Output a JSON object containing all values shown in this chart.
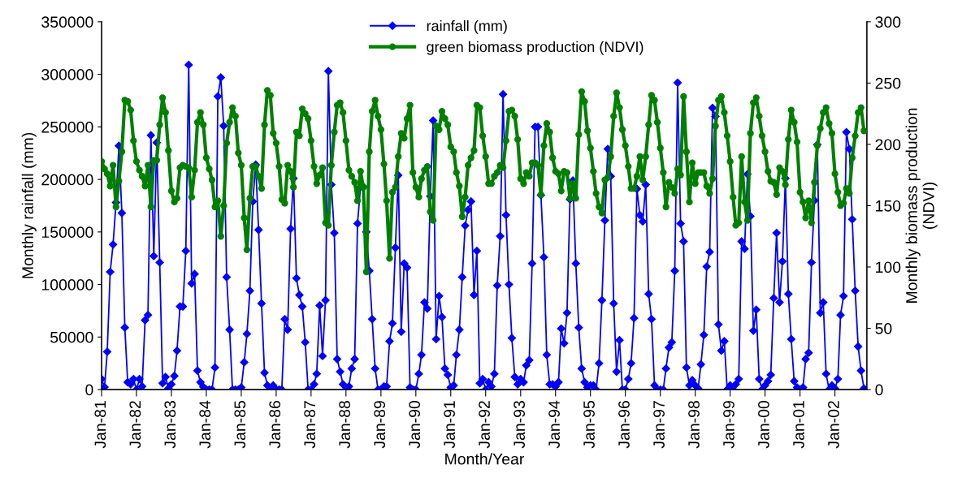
{
  "chart_data": {
    "type": "line",
    "xlabel": "Month/Year",
    "ylabel": "Monthly rainfall (mm)",
    "y2label": "Monthly biomass production\n(NDVI)",
    "x": [
      "1981-01",
      "1981-02",
      "1981-03",
      "1981-04",
      "1981-05",
      "1981-06",
      "1981-07",
      "1981-08",
      "1981-09",
      "1981-10",
      "1981-11",
      "1981-12",
      "1982-01",
      "1982-02",
      "1982-03",
      "1982-04",
      "1982-05",
      "1982-06",
      "1982-07",
      "1982-08",
      "1982-09",
      "1982-10",
      "1982-11",
      "1982-12",
      "1983-01",
      "1983-02",
      "1983-03",
      "1983-04",
      "1983-05",
      "1983-06",
      "1983-07",
      "1983-08",
      "1983-09",
      "1983-10",
      "1983-11",
      "1983-12",
      "1984-01",
      "1984-02",
      "1984-03",
      "1984-04",
      "1984-05",
      "1984-06",
      "1984-07",
      "1984-08",
      "1984-09",
      "1984-10",
      "1984-11",
      "1984-12",
      "1985-01",
      "1985-02",
      "1985-03",
      "1985-04",
      "1985-05",
      "1985-06",
      "1985-07",
      "1985-08",
      "1985-09",
      "1985-10",
      "1985-11",
      "1985-12",
      "1986-01",
      "1986-02",
      "1986-03",
      "1986-04",
      "1986-05",
      "1986-06",
      "1986-07",
      "1986-08",
      "1986-09",
      "1986-10",
      "1986-11",
      "1986-12",
      "1987-01",
      "1987-02",
      "1987-03",
      "1987-04",
      "1987-05",
      "1987-06",
      "1987-07",
      "1987-08",
      "1987-09",
      "1987-10",
      "1987-11",
      "1987-12",
      "1988-01",
      "1988-02",
      "1988-03",
      "1988-04",
      "1988-05",
      "1988-06",
      "1988-07",
      "1988-08",
      "1988-09",
      "1988-10",
      "1988-11",
      "1988-12",
      "1989-01",
      "1989-02",
      "1989-03",
      "1989-04",
      "1989-05",
      "1989-06",
      "1989-07",
      "1989-08",
      "1989-09",
      "1989-10",
      "1989-11",
      "1989-12",
      "1990-01",
      "1990-02",
      "1990-03",
      "1990-04",
      "1990-05",
      "1990-06",
      "1990-07",
      "1990-08",
      "1990-09",
      "1990-10",
      "1990-11",
      "1990-12",
      "1991-01",
      "1991-02",
      "1991-03",
      "1991-04",
      "1991-05",
      "1991-06",
      "1991-07",
      "1991-08",
      "1991-09",
      "1991-10",
      "1991-11",
      "1991-12",
      "1992-01",
      "1992-02",
      "1992-03",
      "1992-04",
      "1992-05",
      "1992-06",
      "1992-07",
      "1992-08",
      "1992-09",
      "1992-10",
      "1992-11",
      "1992-12",
      "1993-01",
      "1993-02",
      "1993-03",
      "1993-04",
      "1993-05",
      "1993-06",
      "1993-07",
      "1993-08",
      "1993-09",
      "1993-10",
      "1993-11",
      "1993-12",
      "1994-01",
      "1994-02",
      "1994-03",
      "1994-04",
      "1994-05",
      "1994-06",
      "1994-07",
      "1994-08",
      "1994-09",
      "1994-10",
      "1994-11",
      "1994-12",
      "1995-01",
      "1995-02",
      "1995-03",
      "1995-04",
      "1995-05",
      "1995-06",
      "1995-07",
      "1995-08",
      "1995-09",
      "1995-10",
      "1995-11",
      "1995-12",
      "1996-01",
      "1996-02",
      "1996-03",
      "1996-04",
      "1996-05",
      "1996-06",
      "1996-07",
      "1996-08",
      "1996-09",
      "1996-10",
      "1996-11",
      "1996-12",
      "1997-01",
      "1997-02",
      "1997-03",
      "1997-04",
      "1997-05",
      "1997-06",
      "1997-07",
      "1997-08",
      "1997-09",
      "1997-10",
      "1997-11",
      "1997-12",
      "1998-01",
      "1998-02",
      "1998-03",
      "1998-04",
      "1998-05",
      "1998-06",
      "1998-07",
      "1998-08",
      "1998-09",
      "1998-10",
      "1998-11",
      "1998-12",
      "1999-01",
      "1999-02",
      "1999-03",
      "1999-04",
      "1999-05",
      "1999-06",
      "1999-07",
      "1999-08",
      "1999-09",
      "1999-10",
      "1999-11",
      "1999-12",
      "2000-01",
      "2000-02",
      "2000-03",
      "2000-04",
      "2000-05",
      "2000-06",
      "2000-07",
      "2000-08",
      "2000-09",
      "2000-10",
      "2000-11",
      "2000-12",
      "2001-01",
      "2001-02",
      "2001-03",
      "2001-04",
      "2001-05",
      "2001-06",
      "2001-07",
      "2001-08",
      "2001-09",
      "2001-10",
      "2001-11",
      "2001-12",
      "2002-01",
      "2002-02",
      "2002-03",
      "2002-04",
      "2002-05",
      "2002-06",
      "2002-07",
      "2002-08",
      "2002-09",
      "2002-10",
      "2002-11"
    ],
    "series": [
      {
        "name": "rainfall (mm)",
        "color": "#0000ff",
        "axis": "y",
        "marker": "diamond",
        "values": [
          10000,
          2300,
          36000,
          112000,
          138000,
          178000,
          232000,
          168000,
          59000,
          7000,
          5000,
          10000,
          0,
          10000,
          3000,
          66000,
          71000,
          242000,
          127000,
          235000,
          121000,
          6000,
          12000,
          1000,
          5000,
          13000,
          37000,
          79000,
          79000,
          132000,
          309000,
          101000,
          110000,
          18000,
          7000,
          2500,
          0,
          0,
          0,
          21000,
          279000,
          297000,
          251000,
          107000,
          57000,
          0,
          0,
          0,
          2000,
          26000,
          53000,
          94000,
          179000,
          214000,
          152000,
          82000,
          16000,
          4000,
          1000,
          4000,
          0,
          0,
          0,
          67000,
          57000,
          153000,
          201000,
          106000,
          90000,
          79000,
          45000,
          0,
          0,
          5000,
          15000,
          80000,
          32000,
          85000,
          303000,
          195000,
          149000,
          29000,
          17000,
          5000,
          0,
          3000,
          20000,
          29000,
          158000,
          193000,
          193000,
          150000,
          113000,
          67000,
          20000,
          0,
          0,
          3000,
          3000,
          46000,
          63000,
          135000,
          204000,
          55000,
          120000,
          116000,
          2000,
          0,
          0,
          15000,
          33000,
          83000,
          77000,
          184000,
          256000,
          48000,
          89000,
          69000,
          20000,
          14000,
          2000,
          4000,
          33000,
          57000,
          107000,
          156000,
          171000,
          179000,
          90000,
          132000,
          6000,
          10000,
          0,
          7000,
          3000,
          15000,
          99000,
          146000,
          281000,
          166000,
          100000,
          49000,
          12000,
          5000,
          10000,
          7000,
          23000,
          28000,
          120000,
          250000,
          250000,
          185000,
          126000,
          33000,
          5000,
          5000,
          3000,
          7000,
          58000,
          44000,
          73000,
          181000,
          199000,
          120000,
          59000,
          20000,
          7000,
          2000,
          4000,
          4000,
          0,
          25000,
          85000,
          161000,
          229000,
          203000,
          82000,
          17000,
          47000,
          0,
          0,
          10000,
          25000,
          68000,
          191000,
          166000,
          160000,
          195000,
          91000,
          67000,
          4000,
          0,
          0,
          0,
          20000,
          40000,
          45000,
          113000,
          292000,
          158000,
          141000,
          21000,
          4000,
          9000,
          4000,
          1000,
          24000,
          52000,
          117000,
          131000,
          268000,
          260000,
          62000,
          37000,
          46000,
          0,
          4000,
          0,
          5000,
          10000,
          141000,
          134000,
          205000,
          165000,
          56000,
          76000,
          10000,
          0,
          4000,
          8000,
          14000,
          87000,
          149000,
          83000,
          122000,
          201000,
          91000,
          48000,
          8000,
          2000,
          0,
          2000,
          29000,
          35000,
          121000,
          180000,
          233000,
          73000,
          83000,
          15000,
          0,
          4000,
          1000,
          10000,
          71000,
          89000,
          245000,
          229000,
          162000,
          94000,
          41000,
          18000,
          1000
        ]
      },
      {
        "name": "green biomass production (NDVI)",
        "color": "#008000",
        "axis": "y2",
        "marker": "circle",
        "values": [
          186,
          180,
          176,
          166,
          183,
          149,
          170,
          194,
          236,
          235,
          228,
          203,
          186,
          179,
          174,
          166,
          183,
          149,
          187,
          187,
          216,
          238,
          226,
          195,
          162,
          153,
          156,
          181,
          183,
          182,
          181,
          157,
          179,
          218,
          226,
          216,
          189,
          180,
          171,
          149,
          154,
          125,
          150,
          201,
          218,
          230,
          223,
          193,
          183,
          140,
          114,
          156,
          182,
          182,
          174,
          164,
          216,
          244,
          240,
          209,
          201,
          182,
          155,
          152,
          183,
          178,
          165,
          210,
          207,
          229,
          225,
          221,
          203,
          182,
          168,
          175,
          181,
          136,
          134,
          183,
          210,
          232,
          234,
          226,
          203,
          179,
          174,
          169,
          154,
          178,
          165,
          96,
          194,
          227,
          236,
          223,
          212,
          184,
          154,
          107,
          161,
          165,
          190,
          209,
          205,
          221,
          232,
          177,
          165,
          157,
          172,
          179,
          182,
          145,
          138,
          215,
          212,
          227,
          221,
          216,
          198,
          194,
          177,
          166,
          141,
          157,
          183,
          189,
          195,
          232,
          230,
          207,
          190,
          168,
          168,
          174,
          177,
          183,
          181,
          203,
          227,
          228,
          223,
          204,
          172,
          168,
          177,
          174,
          185,
          185,
          183,
          159,
          199,
          217,
          210,
          189,
          178,
          176,
          162,
          178,
          177,
          156,
          168,
          156,
          208,
          243,
          235,
          211,
          197,
          178,
          160,
          149,
          144,
          171,
          173,
          190,
          223,
          242,
          230,
          212,
          199,
          182,
          164,
          164,
          174,
          190,
          171,
          190,
          216,
          240,
          236,
          218,
          197,
          177,
          149,
          169,
          165,
          160,
          180,
          175,
          239,
          194,
          153,
          185,
          168,
          177,
          177,
          177,
          166,
          160,
          172,
          215,
          236,
          239,
          226,
          207,
          186,
          157,
          134,
          136,
          190,
          153,
          138,
          209,
          234,
          238,
          223,
          207,
          194,
          178,
          170,
          169,
          159,
          181,
          178,
          167,
          204,
          228,
          218,
          202,
          161,
          153,
          140,
          154,
          136,
          169,
          199,
          213,
          226,
          230,
          217,
          209,
          176,
          161,
          150,
          152,
          164,
          160,
          189,
          207,
          226,
          230,
          211
        ]
      }
    ],
    "xlim": [
      "1981-01",
      "2002-12"
    ],
    "xticks": [
      {
        "value": "1981-01",
        "label": "Jan-81"
      },
      {
        "value": "1982-01",
        "label": "Jan-82"
      },
      {
        "value": "1983-01",
        "label": "Jan-83"
      },
      {
        "value": "1984-01",
        "label": "Jan-84"
      },
      {
        "value": "1985-01",
        "label": "Jan-85"
      },
      {
        "value": "1986-01",
        "label": "Jan-86"
      },
      {
        "value": "1987-01",
        "label": "Jan-87"
      },
      {
        "value": "1988-01",
        "label": "Jan-88"
      },
      {
        "value": "1989-01",
        "label": "Jan-89"
      },
      {
        "value": "1990-01",
        "label": "Jan-90"
      },
      {
        "value": "1991-01",
        "label": "Jan-91"
      },
      {
        "value": "1992-01",
        "label": "Jan-92"
      },
      {
        "value": "1993-01",
        "label": "Jan-93"
      },
      {
        "value": "1994-01",
        "label": "Jan-94"
      },
      {
        "value": "1995-01",
        "label": "Jan-95"
      },
      {
        "value": "1996-01",
        "label": "Jan-96"
      },
      {
        "value": "1997-01",
        "label": "Jan-97"
      },
      {
        "value": "1998-01",
        "label": "Jan-98"
      },
      {
        "value": "1999-01",
        "label": "Jan-99"
      },
      {
        "value": "2000-01",
        "label": "Jan-00"
      },
      {
        "value": "2001-01",
        "label": "Jan-01"
      },
      {
        "value": "2002-01",
        "label": "Jan-02"
      }
    ],
    "ylim": [
      0,
      350000
    ],
    "yticks": [
      0,
      50000,
      100000,
      150000,
      200000,
      250000,
      300000,
      350000
    ],
    "y2lim": [
      0,
      300
    ],
    "y2ticks": [
      0,
      50,
      100,
      150,
      200,
      250,
      300
    ],
    "grid": false,
    "legend": "top",
    "line_style": "solid"
  }
}
